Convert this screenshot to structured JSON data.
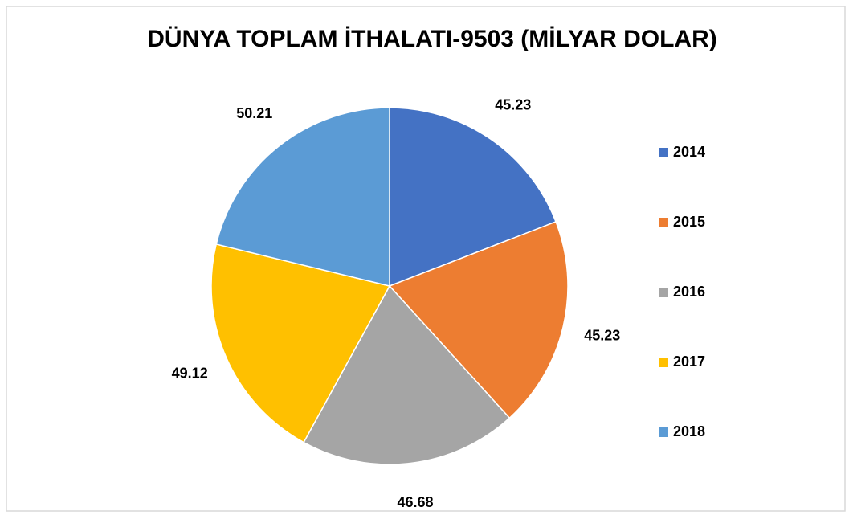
{
  "chart_data": {
    "type": "pie",
    "title": "DÜNYA TOPLAM İTHALATI-9503 (MİLYAR DOLAR)",
    "categories": [
      "2014",
      "2015",
      "2016",
      "2017",
      "2018"
    ],
    "values": [
      45.23,
      45.23,
      46.68,
      49.12,
      50.21
    ],
    "colors": [
      "#4472c4",
      "#ed7d31",
      "#a5a5a5",
      "#ffc000",
      "#5b9bd5"
    ],
    "legend": "right"
  }
}
